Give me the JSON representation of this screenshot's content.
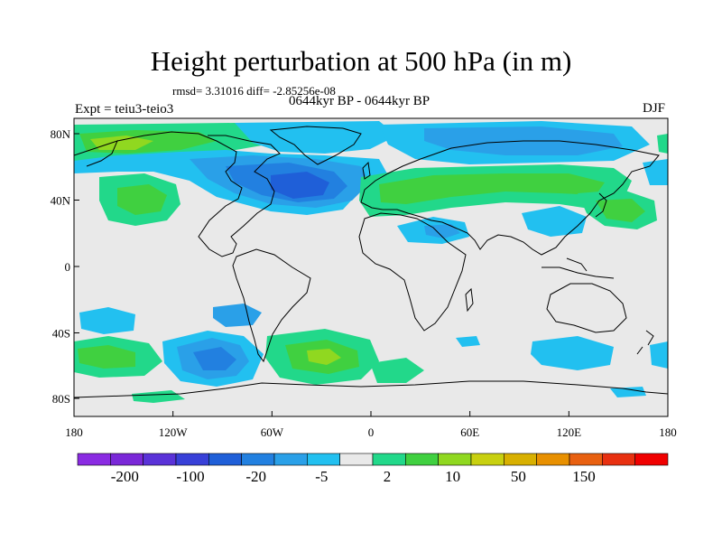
{
  "title": "Height perturbation at 500 hPa (in m)",
  "stats_line": "rmsd= 3.31016 diff= -2.85256e-08",
  "subtitle": "0644kyr BP - 0644kyr BP",
  "experiment": "Expt = teiu3-teio3",
  "season": "DJF",
  "y_ticks": [
    "80N",
    "40N",
    "0",
    "40S",
    "80S"
  ],
  "x_ticks": [
    "180",
    "120W",
    "60W",
    "0",
    "60E",
    "120E",
    "180"
  ],
  "colorbar": {
    "colors": [
      "#8a2be2",
      "#7a28d8",
      "#5a32d8",
      "#3840d8",
      "#1f5fd8",
      "#2280e0",
      "#2aa0e8",
      "#22c0f0",
      "#e9e9e9",
      "#22d88a",
      "#40d040",
      "#90d820",
      "#c8d010",
      "#d8b000",
      "#e89000",
      "#e86010",
      "#e83010",
      "#f00000"
    ],
    "labels": [
      "-200",
      "-100",
      "-20",
      "-5",
      "2",
      "10",
      "50",
      "150"
    ]
  },
  "fill_colors": {
    "background": "#e9e9e9",
    "light_blue": "#22c0f0",
    "blue": "#2aa0e8",
    "mid_blue": "#2280e0",
    "dark_blue": "#1f5fd8",
    "teal": "#22d88a",
    "green": "#40d040",
    "yellow_green": "#90d820"
  }
}
